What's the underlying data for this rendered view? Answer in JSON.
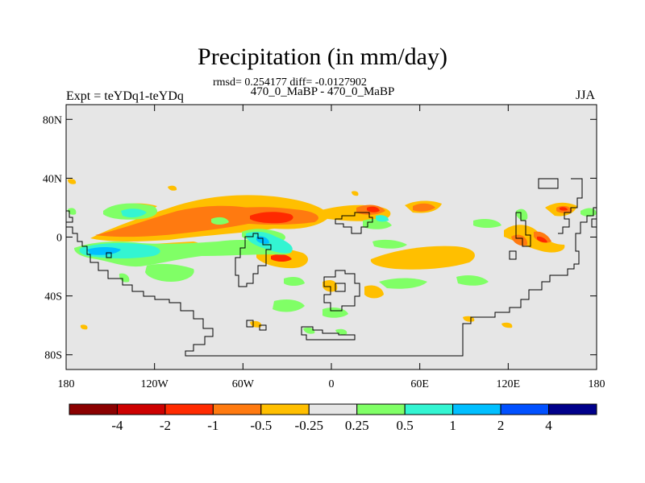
{
  "title": "Precipitation (in mm/day)",
  "stats": "rmsd= 0.254177 diff= -0.0127902",
  "experiment": "Expt = teYDq1-teYDq",
  "subtitle": "470_0_MaBP - 470_0_MaBP",
  "season": "JJA",
  "map": {
    "projection": "cylindrical equidistant",
    "lon_range": [
      -180,
      180
    ],
    "lat_range": [
      -90,
      90
    ],
    "background_color": "#e6e6e6",
    "y_ticks": [
      {
        "lat": 80,
        "label": "80N"
      },
      {
        "lat": 40,
        "label": "40N"
      },
      {
        "lat": 0,
        "label": "0"
      },
      {
        "lat": -40,
        "label": "40S"
      },
      {
        "lat": -80,
        "label": "80S"
      }
    ],
    "x_ticks": [
      {
        "lon": -180,
        "label": "180"
      },
      {
        "lon": -120,
        "label": "120W"
      },
      {
        "lon": -60,
        "label": "60W"
      },
      {
        "lon": 0,
        "label": "0"
      },
      {
        "lon": 60,
        "label": "60E"
      },
      {
        "lon": 120,
        "label": "120E"
      },
      {
        "lon": 180,
        "label": "180"
      }
    ]
  },
  "colorbar": {
    "colors": [
      "#8b0000",
      "#cd0000",
      "#ff2a00",
      "#ff7a10",
      "#ffbf00",
      "#e6e6e6",
      "#80ff66",
      "#33f5d2",
      "#00bfff",
      "#0050ff",
      "#00008b"
    ],
    "labels": [
      "-4",
      "-2",
      "-1",
      "-0.5",
      "-0.25",
      "0.25",
      "0.5",
      "1",
      "2",
      "4"
    ]
  }
}
